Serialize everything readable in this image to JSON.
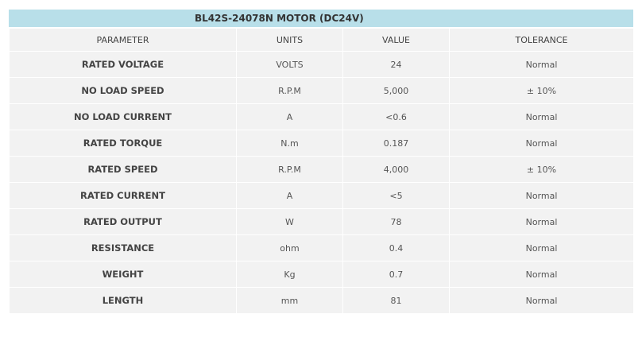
{
  "title": "BL42S-24078N MOTOR (DC24V)",
  "table": {
    "header": [
      "PARAMETER",
      "UNITS",
      "VALUE",
      "TOLERANCE"
    ],
    "rows": [
      [
        "RATED VOLTAGE",
        "VOLTS",
        "24",
        "Normal"
      ],
      [
        "NO LOAD SPEED",
        "R.P.M",
        "5,000",
        "± 10%"
      ],
      [
        "NO LOAD CURRENT",
        "A",
        "<0.6",
        "Normal"
      ],
      [
        "RATED TORQUE",
        "N.m",
        "0.187",
        "Normal"
      ],
      [
        "RATED SPEED",
        "R.P.M",
        "4,000",
        "± 10%"
      ],
      [
        "RATED CURRENT",
        "A",
        "<5",
        "Normal"
      ],
      [
        "RATED OUTPUT",
        "W",
        "78",
        "Normal"
      ],
      [
        "RESISTANCE",
        "ohm",
        "0.4",
        "Normal"
      ],
      [
        "WEIGHT",
        "Kg",
        "0.7",
        "Normal"
      ],
      [
        "LENGTH",
        "mm",
        "81",
        "Normal"
      ]
    ]
  }
}
